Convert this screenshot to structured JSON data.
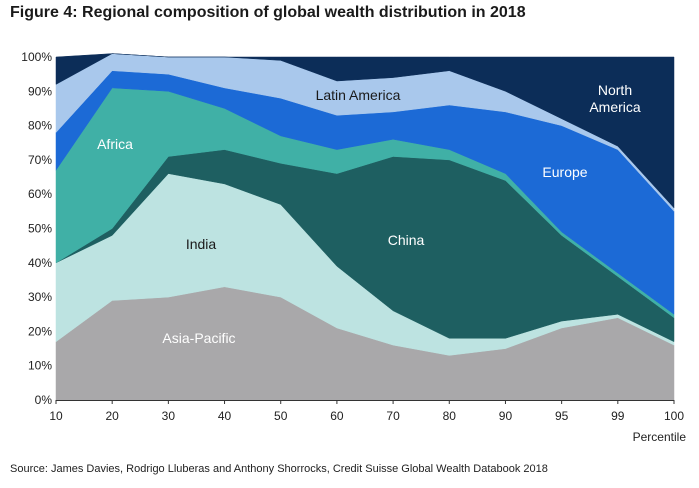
{
  "title": "Figure 4: Regional composition of global wealth distribution in 2018",
  "source": "Source: James Davies, Rodrigo Lluberas and Anthony Shorrocks, Credit Suisse Global Wealth Databook 2018",
  "chart_data": {
    "type": "area",
    "stacked": true,
    "xlabel": "Percentile",
    "ylabel": "",
    "x": [
      10,
      20,
      30,
      40,
      50,
      60,
      70,
      80,
      90,
      95,
      99,
      100
    ],
    "ylim": [
      0,
      100
    ],
    "yticks": [
      "0%",
      "10%",
      "20%",
      "30%",
      "40%",
      "50%",
      "60%",
      "70%",
      "80%",
      "90%",
      "100%"
    ],
    "grid": false,
    "legend": "labels-inside",
    "series": [
      {
        "name": "Asia-Pacific",
        "color": "#a9a8aa",
        "label_color": "#ffffff",
        "values": [
          17,
          29,
          30,
          33,
          30,
          21,
          16,
          13,
          15,
          21,
          24,
          16
        ]
      },
      {
        "name": "India",
        "color": "#bde3e1",
        "label_color": "#1a1a1a",
        "values": [
          23,
          19,
          36,
          30,
          27,
          18,
          10,
          5,
          3,
          2,
          1,
          1
        ]
      },
      {
        "name": "China",
        "color": "#1e5f61",
        "label_color": "#ffffff",
        "values": [
          0,
          2,
          5,
          10,
          12,
          27,
          45,
          52,
          46,
          25,
          11,
          7
        ]
      },
      {
        "name": "Africa",
        "color": "#40b0a6",
        "label_color": "#ffffff",
        "values": [
          27,
          41,
          19,
          12,
          8,
          7,
          5,
          3,
          2,
          1,
          1,
          1
        ]
      },
      {
        "name": "Europe",
        "color": "#1c6ad6",
        "label_color": "#ffffff",
        "values": [
          11,
          5,
          5,
          6,
          11,
          10,
          8,
          13,
          18,
          31,
          36,
          30
        ]
      },
      {
        "name": "Latin America",
        "color": "#a9c8ec",
        "label_color": "#1a1a1a",
        "values": [
          14,
          5,
          5,
          9,
          11,
          10,
          10,
          10,
          6,
          2,
          1,
          1
        ]
      },
      {
        "name": "North America",
        "color": "#0c2d58",
        "label_color": "#ffffff",
        "values": [
          8,
          0,
          0,
          0,
          1,
          7,
          6,
          4,
          10,
          18,
          26,
          44
        ]
      }
    ]
  }
}
